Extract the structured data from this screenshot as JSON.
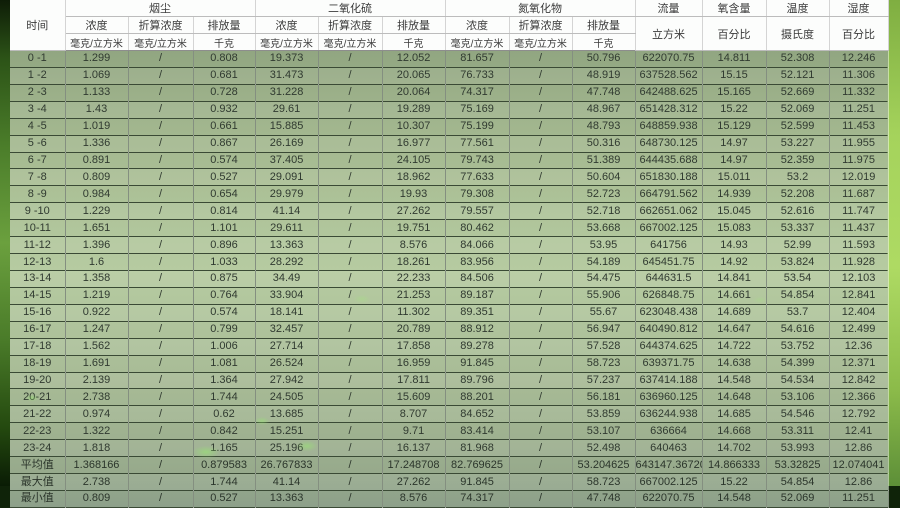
{
  "colors": {
    "body_green": "#aabf96",
    "header_bg": "#fcfdfc",
    "edge_dark_green": "#2c5317",
    "edge_bright_green": "#a5d35c",
    "text": "#303a30"
  },
  "table": {
    "time_header": "时间",
    "groups": [
      {
        "label": "烟尘",
        "sub": [
          "浓度",
          "折算浓度",
          "排放量"
        ],
        "units": [
          "毫克/立方米",
          "毫克/立方米",
          "千克"
        ]
      },
      {
        "label": "二氧化硫",
        "sub": [
          "浓度",
          "折算浓度",
          "排放量"
        ],
        "units": [
          "毫克/立方米",
          "毫克/立方米",
          "千克"
        ]
      },
      {
        "label": "氮氧化物",
        "sub": [
          "浓度",
          "折算浓度",
          "排放量"
        ],
        "units": [
          "毫克/立方米",
          "毫克/立方米",
          "千克"
        ]
      }
    ],
    "singles": [
      {
        "label": "流量",
        "unit": "立方米"
      },
      {
        "label": "氧含量",
        "unit": "百分比"
      },
      {
        "label": "温度",
        "unit": "摄氏度"
      },
      {
        "label": "湿度",
        "unit": "百分比"
      }
    ],
    "rows": [
      {
        "time": "0 -1",
        "values": [
          "1.299",
          "/",
          "0.808",
          "19.373",
          "/",
          "12.052",
          "81.657",
          "/",
          "50.796",
          "622070.75",
          "14.811",
          "52.308",
          "12.246"
        ]
      },
      {
        "time": "1 -2",
        "values": [
          "1.069",
          "/",
          "0.681",
          "31.473",
          "/",
          "20.065",
          "76.733",
          "/",
          "48.919",
          "637528.562",
          "15.15",
          "52.121",
          "11.306"
        ]
      },
      {
        "time": "2 -3",
        "values": [
          "1.133",
          "/",
          "0.728",
          "31.228",
          "/",
          "20.064",
          "74.317",
          "/",
          "47.748",
          "642488.625",
          "15.165",
          "52.669",
          "11.332"
        ]
      },
      {
        "time": "3 -4",
        "values": [
          "1.43",
          "/",
          "0.932",
          "29.61",
          "/",
          "19.289",
          "75.169",
          "/",
          "48.967",
          "651428.312",
          "15.22",
          "52.069",
          "11.251"
        ]
      },
      {
        "time": "4 -5",
        "values": [
          "1.019",
          "/",
          "0.661",
          "15.885",
          "/",
          "10.307",
          "75.199",
          "/",
          "48.793",
          "648859.938",
          "15.129",
          "52.599",
          "11.453"
        ]
      },
      {
        "time": "5 -6",
        "values": [
          "1.336",
          "/",
          "0.867",
          "26.169",
          "/",
          "16.977",
          "77.561",
          "/",
          "50.316",
          "648730.125",
          "14.97",
          "53.227",
          "11.955"
        ]
      },
      {
        "time": "6 -7",
        "values": [
          "0.891",
          "/",
          "0.574",
          "37.405",
          "/",
          "24.105",
          "79.743",
          "/",
          "51.389",
          "644435.688",
          "14.97",
          "52.359",
          "11.975"
        ]
      },
      {
        "time": "7 -8",
        "values": [
          "0.809",
          "/",
          "0.527",
          "29.091",
          "/",
          "18.962",
          "77.633",
          "/",
          "50.604",
          "651830.188",
          "15.011",
          "53.2",
          "12.019"
        ]
      },
      {
        "time": "8 -9",
        "values": [
          "0.984",
          "/",
          "0.654",
          "29.979",
          "/",
          "19.93",
          "79.308",
          "/",
          "52.723",
          "664791.562",
          "14.939",
          "52.208",
          "11.687"
        ]
      },
      {
        "time": "9 -10",
        "values": [
          "1.229",
          "/",
          "0.814",
          "41.14",
          "/",
          "27.262",
          "79.557",
          "/",
          "52.718",
          "662651.062",
          "15.045",
          "52.616",
          "11.747"
        ]
      },
      {
        "time": "10-11",
        "values": [
          "1.651",
          "/",
          "1.101",
          "29.611",
          "/",
          "19.751",
          "80.462",
          "/",
          "53.668",
          "667002.125",
          "15.083",
          "53.337",
          "11.437"
        ]
      },
      {
        "time": "11-12",
        "values": [
          "1.396",
          "/",
          "0.896",
          "13.363",
          "/",
          "8.576",
          "84.066",
          "/",
          "53.95",
          "641756",
          "14.93",
          "52.99",
          "11.593"
        ]
      },
      {
        "time": "12-13",
        "values": [
          "1.6",
          "/",
          "1.033",
          "28.292",
          "/",
          "18.261",
          "83.956",
          "/",
          "54.189",
          "645451.75",
          "14.92",
          "53.824",
          "11.928"
        ]
      },
      {
        "time": "13-14",
        "values": [
          "1.358",
          "/",
          "0.875",
          "34.49",
          "/",
          "22.233",
          "84.506",
          "/",
          "54.475",
          "644631.5",
          "14.841",
          "53.54",
          "12.103"
        ]
      },
      {
        "time": "14-15",
        "values": [
          "1.219",
          "/",
          "0.764",
          "33.904",
          "/",
          "21.253",
          "89.187",
          "/",
          "55.906",
          "626848.75",
          "14.661",
          "54.854",
          "12.841"
        ]
      },
      {
        "time": "15-16",
        "values": [
          "0.922",
          "/",
          "0.574",
          "18.141",
          "/",
          "11.302",
          "89.351",
          "/",
          "55.67",
          "623048.438",
          "14.689",
          "53.7",
          "12.404"
        ]
      },
      {
        "time": "16-17",
        "values": [
          "1.247",
          "/",
          "0.799",
          "32.457",
          "/",
          "20.789",
          "88.912",
          "/",
          "56.947",
          "640490.812",
          "14.647",
          "54.616",
          "12.499"
        ]
      },
      {
        "time": "17-18",
        "values": [
          "1.562",
          "/",
          "1.006",
          "27.714",
          "/",
          "17.858",
          "89.278",
          "/",
          "57.528",
          "644374.625",
          "14.722",
          "53.752",
          "12.36"
        ]
      },
      {
        "time": "18-19",
        "values": [
          "1.691",
          "/",
          "1.081",
          "26.524",
          "/",
          "16.959",
          "91.845",
          "/",
          "58.723",
          "639371.75",
          "14.638",
          "54.399",
          "12.371"
        ]
      },
      {
        "time": "19-20",
        "values": [
          "2.139",
          "/",
          "1.364",
          "27.942",
          "/",
          "17.811",
          "89.796",
          "/",
          "57.237",
          "637414.188",
          "14.548",
          "54.534",
          "12.842"
        ]
      },
      {
        "time": "20-21",
        "values": [
          "2.738",
          "/",
          "1.744",
          "24.505",
          "/",
          "15.609",
          "88.201",
          "/",
          "56.181",
          "636960.125",
          "14.648",
          "53.106",
          "12.366"
        ]
      },
      {
        "time": "21-22",
        "values": [
          "0.974",
          "/",
          "0.62",
          "13.685",
          "/",
          "8.707",
          "84.652",
          "/",
          "53.859",
          "636244.938",
          "14.685",
          "54.546",
          "12.792"
        ]
      },
      {
        "time": "22-23",
        "values": [
          "1.322",
          "/",
          "0.842",
          "15.251",
          "/",
          "9.71",
          "83.414",
          "/",
          "53.107",
          "636664",
          "14.668",
          "53.311",
          "12.41"
        ]
      },
      {
        "time": "23-24",
        "values": [
          "1.818",
          "/",
          "1.165",
          "25.196",
          "/",
          "16.137",
          "81.968",
          "/",
          "52.498",
          "640463",
          "14.702",
          "53.993",
          "12.86"
        ]
      },
      {
        "time": "平均值",
        "values": [
          "1.368166",
          "/",
          "0.879583",
          "26.767833",
          "/",
          "17.248708",
          "82.769625",
          "/",
          "53.204625",
          "643147.367208",
          "14.866333",
          "53.32825",
          "12.074041"
        ]
      },
      {
        "time": "最大值",
        "values": [
          "2.738",
          "/",
          "1.744",
          "41.14",
          "/",
          "27.262",
          "91.845",
          "/",
          "58.723",
          "667002.125",
          "15.22",
          "54.854",
          "12.86"
        ]
      },
      {
        "time": "最小值",
        "values": [
          "0.809",
          "/",
          "0.527",
          "13.363",
          "/",
          "8.576",
          "74.317",
          "/",
          "47.748",
          "622070.75",
          "14.548",
          "52.069",
          "11.251"
        ]
      }
    ]
  }
}
